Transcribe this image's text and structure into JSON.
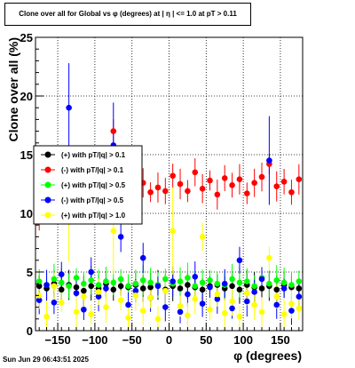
{
  "title": "Clone  over all for Global vs φ (degrees) at |  η  | <= 1.0 at pT > 0.11",
  "datestamp": "Sun Jun 29 06:43:51 2025",
  "chart_data": {
    "type": "scatter",
    "title": "Clone  over all for Global vs φ (degrees) at |  η  | <= 1.0 at pT > 0.11",
    "xlabel": "φ (degrees)",
    "ylabel": "Clone  over all (%)",
    "xlim": [
      -180,
      180
    ],
    "ylim": [
      0,
      25
    ],
    "x_ticks": [
      -150,
      -100,
      -50,
      0,
      50,
      100,
      150
    ],
    "x_tick_labels": [
      "−150",
      "−100",
      "−50",
      "0",
      "50",
      "100",
      "150"
    ],
    "y_ticks": [
      0,
      5,
      10,
      15,
      20,
      25
    ],
    "y_tick_labels": [
      "0",
      "5",
      "10",
      "15",
      "20",
      "25"
    ],
    "grid": true,
    "legend_position": "left-middle",
    "series": [
      {
        "name": "(+) with pT/|q| > 0.1",
        "color": "#000000",
        "values": [
          [
            -175,
            3.8
          ],
          [
            -165,
            3.6
          ],
          [
            -155,
            4.0
          ],
          [
            -145,
            3.5
          ],
          [
            -135,
            3.9
          ],
          [
            -125,
            3.7
          ],
          [
            -115,
            3.4
          ],
          [
            -105,
            3.8
          ],
          [
            -95,
            3.6
          ],
          [
            -85,
            4.0
          ],
          [
            -75,
            3.5
          ],
          [
            -65,
            3.8
          ],
          [
            -55,
            3.7
          ],
          [
            -45,
            3.9
          ],
          [
            -35,
            3.6
          ],
          [
            -25,
            3.7
          ],
          [
            -15,
            3.9
          ],
          [
            -5,
            3.5
          ],
          [
            5,
            3.8
          ],
          [
            15,
            3.6
          ],
          [
            25,
            3.9
          ],
          [
            35,
            3.7
          ],
          [
            45,
            3.5
          ],
          [
            55,
            3.8
          ],
          [
            65,
            3.9
          ],
          [
            75,
            3.6
          ],
          [
            85,
            3.8
          ],
          [
            95,
            3.5
          ],
          [
            105,
            3.9
          ],
          [
            115,
            3.7
          ],
          [
            125,
            3.6
          ],
          [
            135,
            3.8
          ],
          [
            145,
            3.5
          ],
          [
            155,
            3.9
          ],
          [
            165,
            3.7
          ],
          [
            175,
            3.6
          ]
        ]
      },
      {
        "name": "(-) with pT/|q| > 0.1",
        "color": "#ff0000",
        "values": [
          [
            -175,
            9.8
          ],
          [
            -165,
            10.5
          ],
          [
            -155,
            10.2
          ],
          [
            -145,
            10.8
          ],
          [
            -135,
            9.9
          ],
          [
            -125,
            11.0
          ],
          [
            -115,
            10.4
          ],
          [
            -105,
            10.1
          ],
          [
            -95,
            11.2
          ],
          [
            -85,
            10.6
          ],
          [
            -75,
            17.0
          ],
          [
            -65,
            12.4
          ],
          [
            -55,
            12.0
          ],
          [
            -45,
            11.5
          ],
          [
            -35,
            12.6
          ],
          [
            -25,
            11.8
          ],
          [
            -15,
            12.2
          ],
          [
            -5,
            11.9
          ],
          [
            5,
            13.2
          ],
          [
            15,
            12.5
          ],
          [
            25,
            11.9
          ],
          [
            35,
            13.5
          ],
          [
            45,
            12.1
          ],
          [
            55,
            12.8
          ],
          [
            65,
            11.6
          ],
          [
            75,
            13.0
          ],
          [
            85,
            12.4
          ],
          [
            95,
            12.9
          ],
          [
            105,
            11.7
          ],
          [
            115,
            12.6
          ],
          [
            125,
            13.1
          ],
          [
            135,
            14.2
          ],
          [
            145,
            12.3
          ],
          [
            155,
            12.7
          ],
          [
            165,
            11.8
          ],
          [
            175,
            12.9
          ]
        ]
      },
      {
        "name": "(+) with pT/|q| > 0.5",
        "color": "#00ff00",
        "values": [
          [
            -175,
            4.2
          ],
          [
            -165,
            3.9
          ],
          [
            -155,
            4.4
          ],
          [
            -145,
            4.1
          ],
          [
            -135,
            3.8
          ],
          [
            -125,
            4.5
          ],
          [
            -115,
            4.0
          ],
          [
            -105,
            4.3
          ],
          [
            -95,
            3.9
          ],
          [
            -85,
            4.2
          ],
          [
            -75,
            4.1
          ],
          [
            -65,
            4.4
          ],
          [
            -55,
            3.8
          ],
          [
            -45,
            4.0
          ],
          [
            -35,
            4.3
          ],
          [
            -25,
            4.1
          ],
          [
            -15,
            3.9
          ],
          [
            -5,
            4.4
          ],
          [
            5,
            4.0
          ],
          [
            15,
            4.2
          ],
          [
            25,
            4.5
          ],
          [
            35,
            3.8
          ],
          [
            45,
            4.1
          ],
          [
            55,
            4.3
          ],
          [
            65,
            4.0
          ],
          [
            75,
            3.9
          ],
          [
            85,
            4.4
          ],
          [
            95,
            4.1
          ],
          [
            105,
            4.2
          ],
          [
            115,
            3.8
          ],
          [
            125,
            4.5
          ],
          [
            135,
            4.0
          ],
          [
            145,
            4.3
          ],
          [
            155,
            4.1
          ],
          [
            165,
            3.9
          ],
          [
            175,
            4.2
          ]
        ]
      },
      {
        "name": "(-) with pT/|q| > 0.5",
        "color": "#0000ff",
        "values": [
          [
            -175,
            2.6
          ],
          [
            -165,
            3.9
          ],
          [
            -155,
            2.4
          ],
          [
            -145,
            4.8
          ],
          [
            -135,
            19.0
          ],
          [
            -125,
            3.2
          ],
          [
            -115,
            1.8
          ],
          [
            -105,
            5.0
          ],
          [
            -95,
            2.9
          ],
          [
            -85,
            3.6
          ],
          [
            -75,
            15.8
          ],
          [
            -65,
            8.0
          ],
          [
            -55,
            2.2
          ],
          [
            -45,
            3.4
          ],
          [
            -35,
            6.2
          ],
          [
            -25,
            2.8
          ],
          [
            -15,
            3.8
          ],
          [
            -5,
            2.0
          ],
          [
            5,
            4.2
          ],
          [
            15,
            1.6
          ],
          [
            25,
            3.1
          ],
          [
            35,
            4.6
          ],
          [
            45,
            2.3
          ],
          [
            55,
            3.7
          ],
          [
            65,
            2.7
          ],
          [
            75,
            4.0
          ],
          [
            85,
            1.9
          ],
          [
            95,
            6.0
          ],
          [
            105,
            2.5
          ],
          [
            115,
            3.3
          ],
          [
            125,
            4.4
          ],
          [
            135,
            14.5
          ],
          [
            145,
            2.2
          ],
          [
            155,
            3.6
          ],
          [
            165,
            1.7
          ],
          [
            175,
            2.9
          ]
        ]
      },
      {
        "name": "(+) with pT/|q| > 1.0",
        "color": "#ffff00",
        "values": [
          [
            -175,
            3.0
          ],
          [
            -165,
            1.2
          ],
          [
            -155,
            3.8
          ],
          [
            -145,
            2.4
          ],
          [
            -135,
            9.5
          ],
          [
            -125,
            1.6
          ],
          [
            -115,
            2.9
          ],
          [
            -105,
            1.4
          ],
          [
            -95,
            3.3
          ],
          [
            -85,
            2.0
          ],
          [
            -75,
            8.5
          ],
          [
            -65,
            2.6
          ],
          [
            -55,
            1.1
          ],
          [
            -45,
            3.0
          ],
          [
            -35,
            1.7
          ],
          [
            -25,
            2.8
          ],
          [
            -15,
            1.0
          ],
          [
            -5,
            3.4
          ],
          [
            5,
            8.5
          ],
          [
            15,
            2.1
          ],
          [
            25,
            1.3
          ],
          [
            35,
            2.7
          ],
          [
            45,
            8.0
          ],
          [
            55,
            1.8
          ],
          [
            65,
            3.1
          ],
          [
            75,
            1.5
          ],
          [
            85,
            2.5
          ],
          [
            95,
            1.2
          ],
          [
            105,
            3.2
          ],
          [
            115,
            2.2
          ],
          [
            125,
            1.6
          ],
          [
            135,
            6.2
          ],
          [
            145,
            2.9
          ],
          [
            155,
            1.4
          ],
          [
            165,
            2.3
          ],
          [
            175,
            1.9
          ]
        ]
      }
    ]
  }
}
